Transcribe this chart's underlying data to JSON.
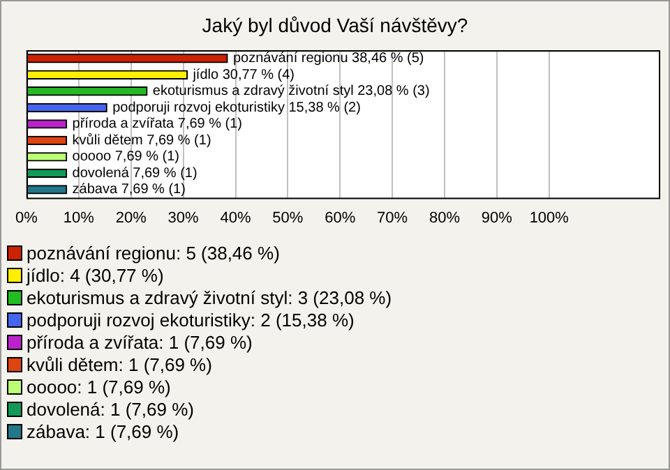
{
  "chart_data": {
    "type": "bar",
    "orientation": "horizontal",
    "title": "Jaký byl důvod Vaší návštěvy?",
    "categories": [
      "poznávání regionu",
      "jídlo",
      "ekoturismus a zdravý životní styl",
      "podporuji rozvoj ekoturistiky",
      "příroda a zvířata",
      "kvůli dětem",
      "ooooo",
      "dovolená",
      "zábava"
    ],
    "values": [
      38.46,
      30.77,
      23.08,
      15.38,
      7.69,
      7.69,
      7.69,
      7.69,
      7.69
    ],
    "value_labels": [
      "38,46 % (5)",
      "30,77 % (4)",
      "23,08 % (3)",
      "15,38 % (2)",
      "7,69 % (1)",
      "7,69 % (1)",
      "7,69 % (1)",
      "7,69 % (1)",
      "7,69 % (1)"
    ],
    "colors": [
      "#cc2200",
      "#ffee00",
      "#22bb22",
      "#4466ee",
      "#bb22cc",
      "#dd4411",
      "#bbff77",
      "#119955",
      "#227788"
    ],
    "xlim": [
      0,
      121
    ],
    "xticks": [
      {
        "value": 0,
        "label": "0%"
      },
      {
        "value": 10,
        "label": "10%"
      },
      {
        "value": 20,
        "label": "20%"
      },
      {
        "value": 30,
        "label": "30%"
      },
      {
        "value": 40,
        "label": "40%"
      },
      {
        "value": 50,
        "label": "50%"
      },
      {
        "value": 60,
        "label": "60%"
      },
      {
        "value": 70,
        "label": "70%"
      },
      {
        "value": 80,
        "label": "80%"
      },
      {
        "value": 90,
        "label": "90%"
      },
      {
        "value": 100,
        "label": "100%"
      }
    ],
    "grid": "x",
    "tick_labels": "x",
    "annotations": [
      "poznávání regionu: 5 (38,46 %)",
      "jídlo: 4 (30,77 %)",
      "ekoturismus a zdravý životní styl: 3 (23,08 %)",
      "podporuji rozvoj ekoturistiky: 2 (15,38 %)",
      "příroda a zvířata: 1 (7,69 %)",
      "kvůli dětem: 1 (7,69 %)",
      "ooooo: 1 (7,69 %)",
      "dovolená: 1 (7,69 %)",
      "zábava: 1 (7,69 %)"
    ]
  }
}
